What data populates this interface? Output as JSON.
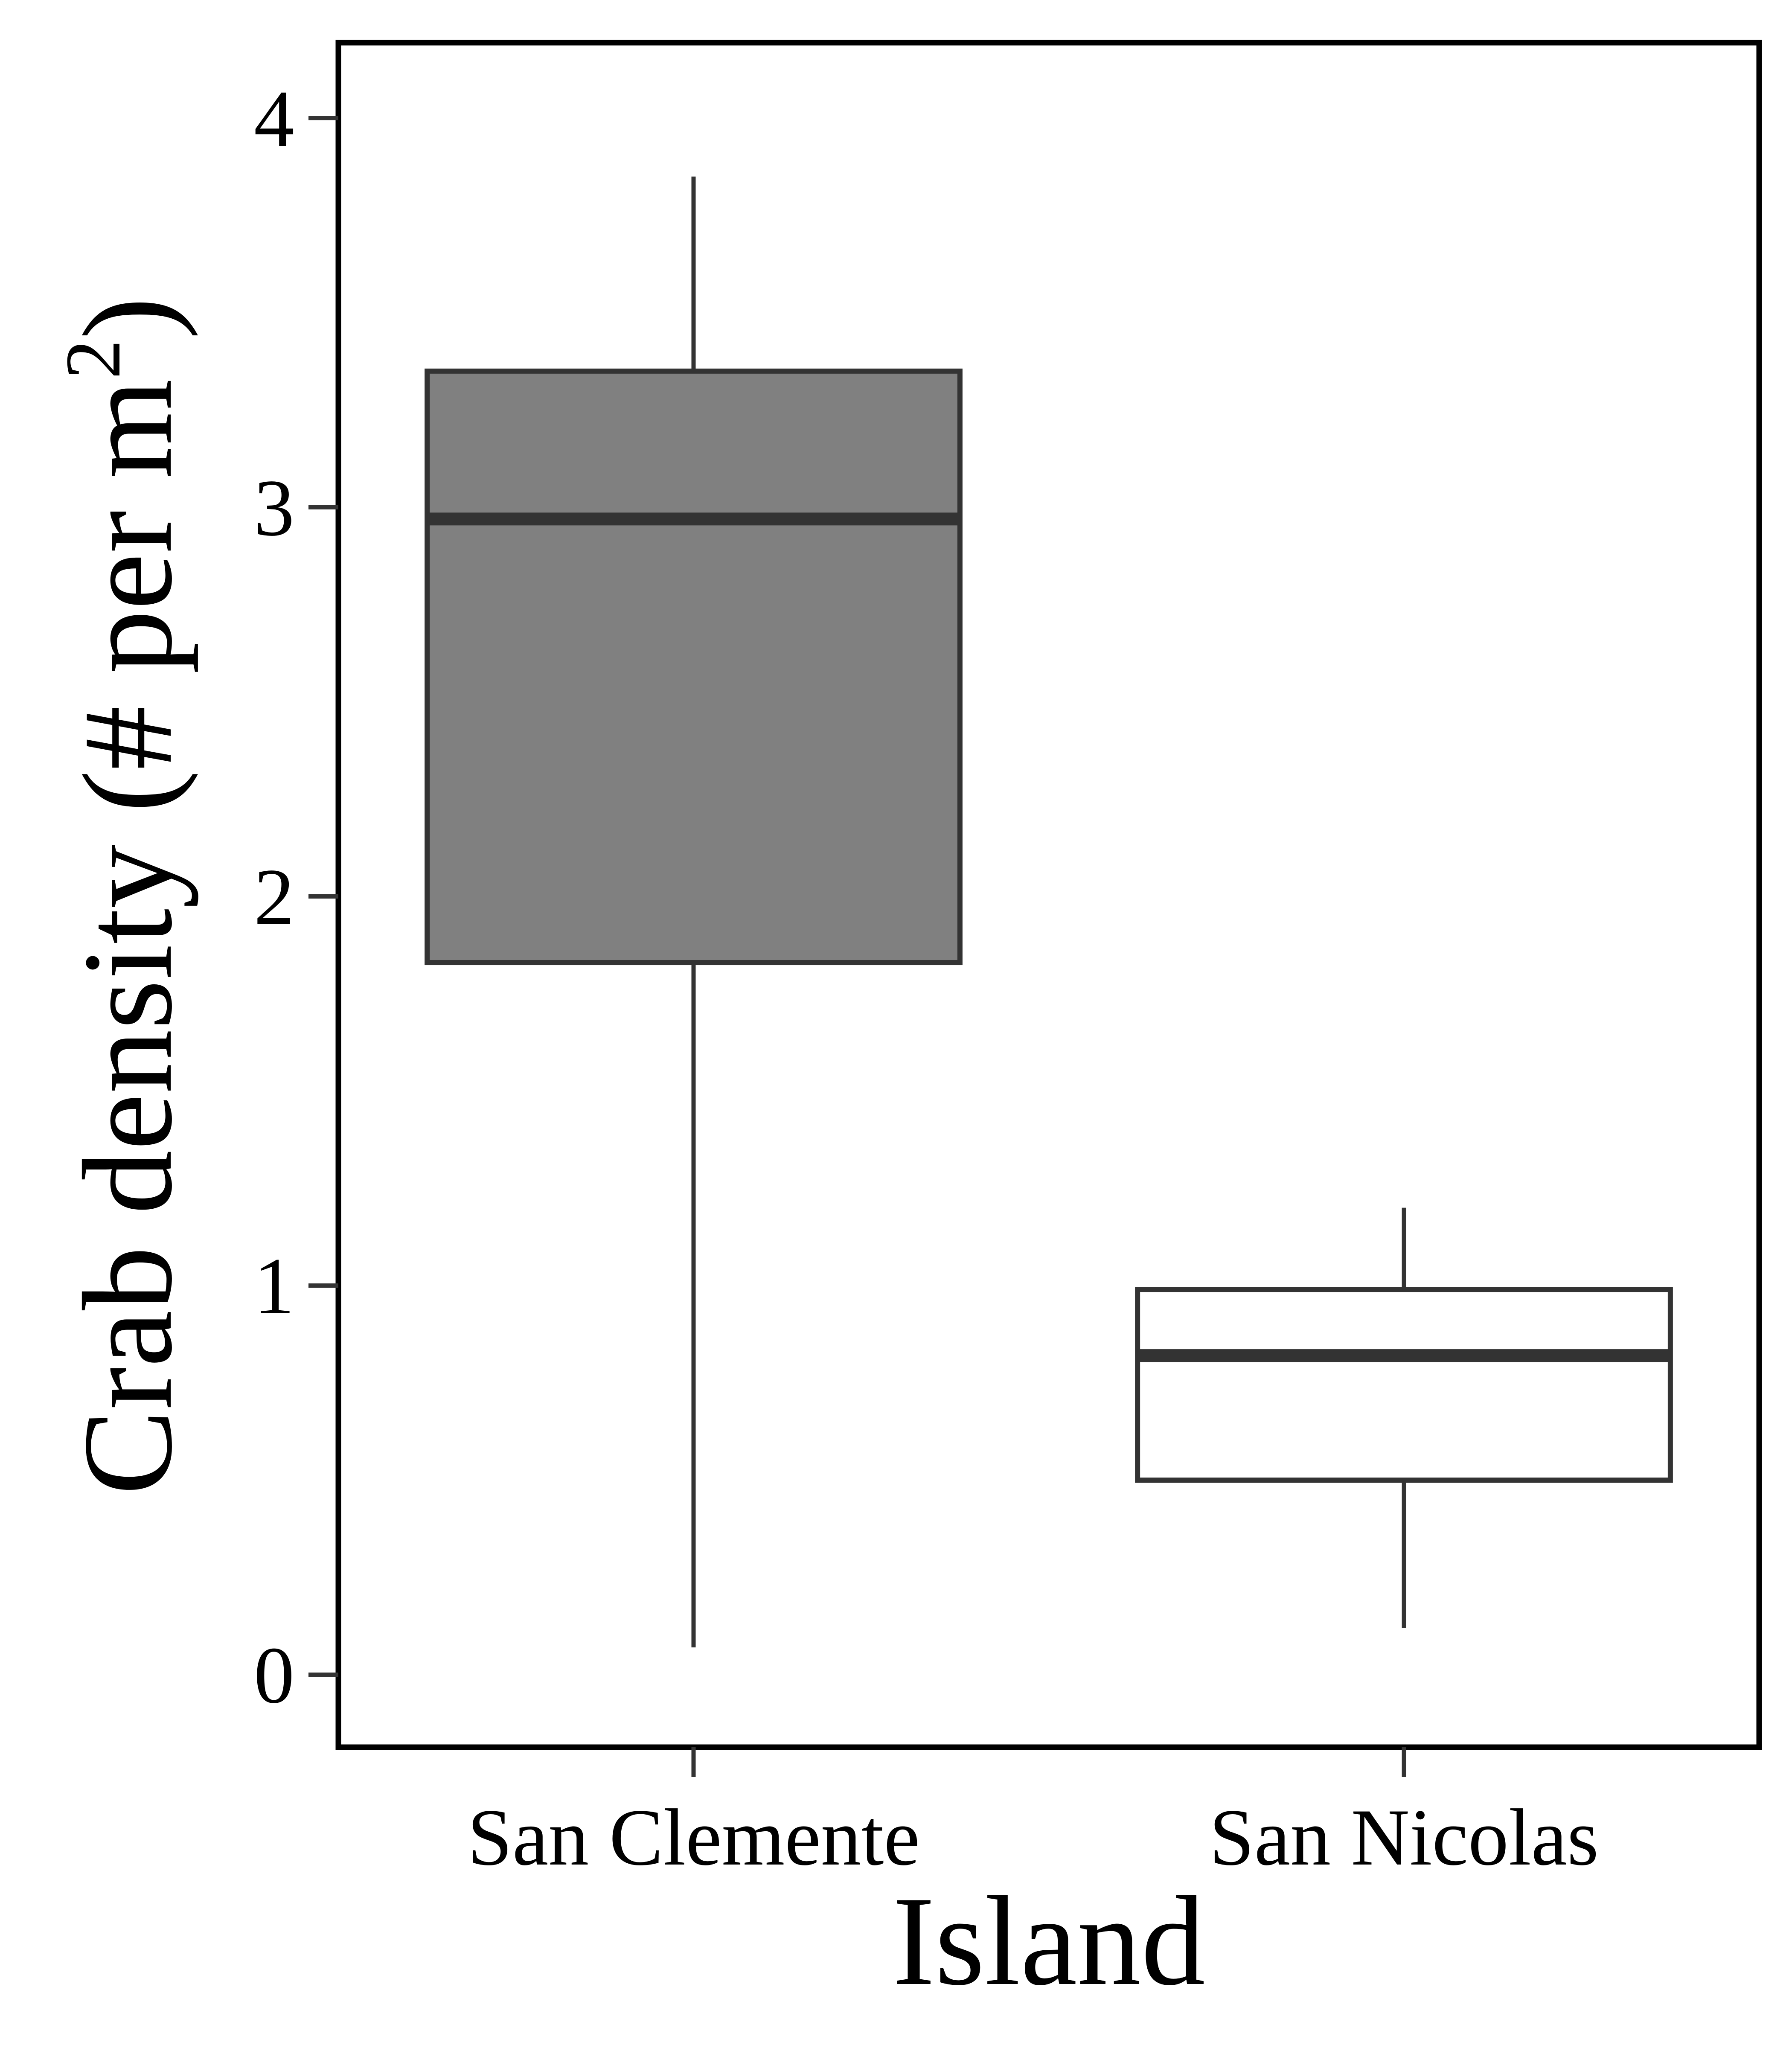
{
  "chart_data": {
    "type": "boxplot",
    "xlabel": "Island",
    "ylabel": "Crab density (# per m",
    "ylabel_superscript": "2",
    "ylabel_close": ")",
    "ylim": [
      -0.2,
      4.2
    ],
    "yticks": [
      0,
      1,
      2,
      3,
      4
    ],
    "ytick_labels": [
      "0",
      "1",
      "2",
      "3",
      "4"
    ],
    "categories": [
      "San Clemente",
      "San Nicolas"
    ],
    "boxes": [
      {
        "category": "San Clemente",
        "whisker_low": 0.07,
        "q1": 1.83,
        "median": 2.97,
        "q3": 3.35,
        "whisker_high": 3.85,
        "fill": "#808080"
      },
      {
        "category": "San Nicolas",
        "whisker_low": 0.12,
        "q1": 0.5,
        "median": 0.82,
        "q3": 0.99,
        "whisker_high": 1.2,
        "fill": "#ffffff"
      }
    ],
    "grid": false,
    "legend": "none",
    "colors": {
      "stroke": "#333333",
      "frame": "#000000"
    }
  }
}
